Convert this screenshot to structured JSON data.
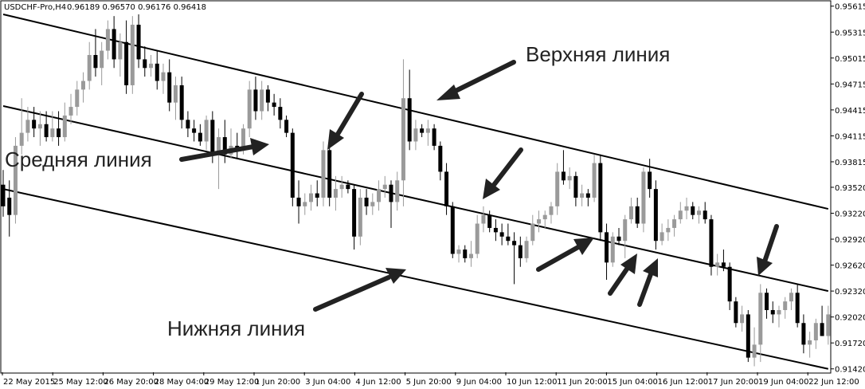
{
  "header": {
    "symbol": "USDCHF-Pro,H4",
    "ohlc": "0.96189 0.96570 0.96176 0.96418"
  },
  "annotations": {
    "upper": "Верхняя линия",
    "middle": "Средняя линия",
    "lower": "Нижняя линия"
  },
  "colors": {
    "bull": "#9a9a9a",
    "bear": "#000000",
    "channel": "#000000",
    "arrow": "#222222"
  },
  "chart_data": {
    "type": "candlestick",
    "y_ticks": [
      "0.95615",
      "0.95315",
      "0.95015",
      "0.94715",
      "0.94415",
      "0.94115",
      "0.93815",
      "0.93520",
      "0.93220",
      "0.92920",
      "0.92620",
      "0.92320",
      "0.92020",
      "0.91720",
      "0.91420"
    ],
    "x_ticks": [
      "22 May 2015",
      "25 May 12:00",
      "26 May 20:00",
      "28 May 04:00",
      "29 May 12:00",
      "1 Jun 20:00",
      "3 Jun 04:00",
      "4 Jun 12:00",
      "5 Jun 20:00",
      "9 Jun 04:00",
      "10 Jun 12:00",
      "11 Jun 20:00",
      "15 Jun 04:00",
      "16 Jun 12:00",
      "17 Jun 20:00",
      "19 Jun 04:00",
      "22 Jun 12:00"
    ],
    "ylim": [
      0.9139,
      0.9564
    ],
    "grid": false,
    "channel": {
      "upper": [
        [
          0,
          0.9552
        ],
        [
          134,
          0.9327
        ]
      ],
      "middle": [
        [
          0,
          0.9446
        ],
        [
          134,
          0.9232
        ]
      ],
      "lower": [
        [
          0,
          0.935
        ],
        [
          134,
          0.9142
        ]
      ]
    },
    "candles": [
      {
        "o": 0.9355,
        "h": 0.9372,
        "l": 0.9318,
        "c": 0.933
      },
      {
        "o": 0.934,
        "h": 0.936,
        "l": 0.9295,
        "c": 0.932
      },
      {
        "o": 0.932,
        "h": 0.941,
        "l": 0.931,
        "c": 0.94
      },
      {
        "o": 0.94,
        "h": 0.9455,
        "l": 0.939,
        "c": 0.9415
      },
      {
        "o": 0.9415,
        "h": 0.9445,
        "l": 0.9405,
        "c": 0.943
      },
      {
        "o": 0.943,
        "h": 0.9445,
        "l": 0.941,
        "c": 0.942
      },
      {
        "o": 0.942,
        "h": 0.944,
        "l": 0.94,
        "c": 0.9425
      },
      {
        "o": 0.9425,
        "h": 0.944,
        "l": 0.9405,
        "c": 0.941
      },
      {
        "o": 0.941,
        "h": 0.944,
        "l": 0.9405,
        "c": 0.942
      },
      {
        "o": 0.942,
        "h": 0.944,
        "l": 0.94,
        "c": 0.941
      },
      {
        "o": 0.941,
        "h": 0.945,
        "l": 0.9405,
        "c": 0.9435
      },
      {
        "o": 0.9435,
        "h": 0.946,
        "l": 0.9425,
        "c": 0.9445
      },
      {
        "o": 0.9445,
        "h": 0.9475,
        "l": 0.9435,
        "c": 0.9465
      },
      {
        "o": 0.9465,
        "h": 0.9485,
        "l": 0.945,
        "c": 0.9475
      },
      {
        "o": 0.9475,
        "h": 0.952,
        "l": 0.9465,
        "c": 0.9505
      },
      {
        "o": 0.9505,
        "h": 0.9535,
        "l": 0.948,
        "c": 0.949
      },
      {
        "o": 0.949,
        "h": 0.952,
        "l": 0.947,
        "c": 0.951
      },
      {
        "o": 0.951,
        "h": 0.9545,
        "l": 0.95,
        "c": 0.9535
      },
      {
        "o": 0.9535,
        "h": 0.955,
        "l": 0.949,
        "c": 0.95
      },
      {
        "o": 0.95,
        "h": 0.953,
        "l": 0.948,
        "c": 0.952
      },
      {
        "o": 0.952,
        "h": 0.9545,
        "l": 0.946,
        "c": 0.947
      },
      {
        "o": 0.947,
        "h": 0.955,
        "l": 0.946,
        "c": 0.954
      },
      {
        "o": 0.954,
        "h": 0.9552,
        "l": 0.949,
        "c": 0.95
      },
      {
        "o": 0.95,
        "h": 0.9515,
        "l": 0.948,
        "c": 0.949
      },
      {
        "o": 0.949,
        "h": 0.9505,
        "l": 0.948,
        "c": 0.9495
      },
      {
        "o": 0.9495,
        "h": 0.951,
        "l": 0.9465,
        "c": 0.9475
      },
      {
        "o": 0.9475,
        "h": 0.9495,
        "l": 0.946,
        "c": 0.9485
      },
      {
        "o": 0.9485,
        "h": 0.95,
        "l": 0.944,
        "c": 0.945
      },
      {
        "o": 0.945,
        "h": 0.948,
        "l": 0.943,
        "c": 0.947
      },
      {
        "o": 0.947,
        "h": 0.948,
        "l": 0.942,
        "c": 0.943
      },
      {
        "o": 0.943,
        "h": 0.944,
        "l": 0.941,
        "c": 0.942
      },
      {
        "o": 0.942,
        "h": 0.943,
        "l": 0.9405,
        "c": 0.9415
      },
      {
        "o": 0.9415,
        "h": 0.9425,
        "l": 0.94,
        "c": 0.9405
      },
      {
        "o": 0.9405,
        "h": 0.9435,
        "l": 0.9395,
        "c": 0.943
      },
      {
        "o": 0.943,
        "h": 0.944,
        "l": 0.938,
        "c": 0.939
      },
      {
        "o": 0.939,
        "h": 0.942,
        "l": 0.935,
        "c": 0.941
      },
      {
        "o": 0.941,
        "h": 0.943,
        "l": 0.938,
        "c": 0.939
      },
      {
        "o": 0.939,
        "h": 0.942,
        "l": 0.9385,
        "c": 0.94
      },
      {
        "o": 0.94,
        "h": 0.9415,
        "l": 0.9385,
        "c": 0.9395
      },
      {
        "o": 0.9395,
        "h": 0.9425,
        "l": 0.939,
        "c": 0.942
      },
      {
        "o": 0.942,
        "h": 0.9475,
        "l": 0.941,
        "c": 0.9465
      },
      {
        "o": 0.9465,
        "h": 0.948,
        "l": 0.943,
        "c": 0.944
      },
      {
        "o": 0.944,
        "h": 0.9475,
        "l": 0.943,
        "c": 0.9465
      },
      {
        "o": 0.9465,
        "h": 0.947,
        "l": 0.944,
        "c": 0.945
      },
      {
        "o": 0.945,
        "h": 0.946,
        "l": 0.9435,
        "c": 0.9445
      },
      {
        "o": 0.9445,
        "h": 0.9455,
        "l": 0.942,
        "c": 0.943
      },
      {
        "o": 0.943,
        "h": 0.9435,
        "l": 0.941,
        "c": 0.9415
      },
      {
        "o": 0.9415,
        "h": 0.942,
        "l": 0.933,
        "c": 0.934
      },
      {
        "o": 0.934,
        "h": 0.936,
        "l": 0.931,
        "c": 0.933
      },
      {
        "o": 0.933,
        "h": 0.9345,
        "l": 0.932,
        "c": 0.9335
      },
      {
        "o": 0.9335,
        "h": 0.9355,
        "l": 0.9325,
        "c": 0.9345
      },
      {
        "o": 0.9345,
        "h": 0.936,
        "l": 0.933,
        "c": 0.934
      },
      {
        "o": 0.934,
        "h": 0.9405,
        "l": 0.933,
        "c": 0.9395
      },
      {
        "o": 0.9395,
        "h": 0.9405,
        "l": 0.933,
        "c": 0.934
      },
      {
        "o": 0.934,
        "h": 0.9365,
        "l": 0.9325,
        "c": 0.935
      },
      {
        "o": 0.935,
        "h": 0.9365,
        "l": 0.934,
        "c": 0.9355
      },
      {
        "o": 0.9355,
        "h": 0.936,
        "l": 0.9345,
        "c": 0.935
      },
      {
        "o": 0.935,
        "h": 0.9355,
        "l": 0.928,
        "c": 0.9295
      },
      {
        "o": 0.9295,
        "h": 0.935,
        "l": 0.9285,
        "c": 0.934
      },
      {
        "o": 0.934,
        "h": 0.935,
        "l": 0.932,
        "c": 0.933
      },
      {
        "o": 0.933,
        "h": 0.9345,
        "l": 0.932,
        "c": 0.9335
      },
      {
        "o": 0.9335,
        "h": 0.936,
        "l": 0.9325,
        "c": 0.935
      },
      {
        "o": 0.935,
        "h": 0.9365,
        "l": 0.934,
        "c": 0.9355
      },
      {
        "o": 0.9355,
        "h": 0.936,
        "l": 0.9305,
        "c": 0.9335
      },
      {
        "o": 0.9335,
        "h": 0.937,
        "l": 0.9325,
        "c": 0.936
      },
      {
        "o": 0.936,
        "h": 0.95,
        "l": 0.933,
        "c": 0.9455
      },
      {
        "o": 0.9455,
        "h": 0.9488,
        "l": 0.9395,
        "c": 0.9405
      },
      {
        "o": 0.9405,
        "h": 0.943,
        "l": 0.9395,
        "c": 0.942
      },
      {
        "o": 0.942,
        "h": 0.9425,
        "l": 0.941,
        "c": 0.9415
      },
      {
        "o": 0.9415,
        "h": 0.943,
        "l": 0.94,
        "c": 0.942
      },
      {
        "o": 0.942,
        "h": 0.9425,
        "l": 0.9395,
        "c": 0.94
      },
      {
        "o": 0.94,
        "h": 0.9405,
        "l": 0.936,
        "c": 0.937
      },
      {
        "o": 0.937,
        "h": 0.938,
        "l": 0.932,
        "c": 0.933
      },
      {
        "o": 0.933,
        "h": 0.9335,
        "l": 0.927,
        "c": 0.9275
      },
      {
        "o": 0.9275,
        "h": 0.9285,
        "l": 0.9265,
        "c": 0.928
      },
      {
        "o": 0.928,
        "h": 0.9285,
        "l": 0.9265,
        "c": 0.927
      },
      {
        "o": 0.927,
        "h": 0.929,
        "l": 0.926,
        "c": 0.9275
      },
      {
        "o": 0.9275,
        "h": 0.932,
        "l": 0.927,
        "c": 0.931
      },
      {
        "o": 0.931,
        "h": 0.933,
        "l": 0.93,
        "c": 0.932
      },
      {
        "o": 0.932,
        "h": 0.9325,
        "l": 0.93,
        "c": 0.9305
      },
      {
        "o": 0.9305,
        "h": 0.9315,
        "l": 0.929,
        "c": 0.93
      },
      {
        "o": 0.93,
        "h": 0.931,
        "l": 0.9285,
        "c": 0.9295
      },
      {
        "o": 0.9295,
        "h": 0.931,
        "l": 0.9285,
        "c": 0.929
      },
      {
        "o": 0.929,
        "h": 0.93,
        "l": 0.924,
        "c": 0.9285
      },
      {
        "o": 0.9285,
        "h": 0.9295,
        "l": 0.926,
        "c": 0.927
      },
      {
        "o": 0.927,
        "h": 0.9295,
        "l": 0.9265,
        "c": 0.929
      },
      {
        "o": 0.929,
        "h": 0.932,
        "l": 0.9285,
        "c": 0.931
      },
      {
        "o": 0.931,
        "h": 0.9325,
        "l": 0.93,
        "c": 0.9315
      },
      {
        "o": 0.9315,
        "h": 0.9325,
        "l": 0.9305,
        "c": 0.932
      },
      {
        "o": 0.932,
        "h": 0.9335,
        "l": 0.931,
        "c": 0.933
      },
      {
        "o": 0.933,
        "h": 0.938,
        "l": 0.932,
        "c": 0.937
      },
      {
        "o": 0.937,
        "h": 0.9395,
        "l": 0.9355,
        "c": 0.936
      },
      {
        "o": 0.936,
        "h": 0.9375,
        "l": 0.935,
        "c": 0.9365
      },
      {
        "o": 0.9365,
        "h": 0.937,
        "l": 0.933,
        "c": 0.934
      },
      {
        "o": 0.934,
        "h": 0.9355,
        "l": 0.933,
        "c": 0.9345
      },
      {
        "o": 0.9345,
        "h": 0.935,
        "l": 0.933,
        "c": 0.934
      },
      {
        "o": 0.934,
        "h": 0.939,
        "l": 0.9335,
        "c": 0.938
      },
      {
        "o": 0.938,
        "h": 0.939,
        "l": 0.929,
        "c": 0.93
      },
      {
        "o": 0.93,
        "h": 0.931,
        "l": 0.9245,
        "c": 0.9265
      },
      {
        "o": 0.9265,
        "h": 0.93,
        "l": 0.926,
        "c": 0.9295
      },
      {
        "o": 0.9295,
        "h": 0.9305,
        "l": 0.9285,
        "c": 0.929
      },
      {
        "o": 0.929,
        "h": 0.932,
        "l": 0.927,
        "c": 0.9315
      },
      {
        "o": 0.9315,
        "h": 0.934,
        "l": 0.931,
        "c": 0.933
      },
      {
        "o": 0.933,
        "h": 0.934,
        "l": 0.9305,
        "c": 0.931
      },
      {
        "o": 0.931,
        "h": 0.9375,
        "l": 0.93,
        "c": 0.937
      },
      {
        "o": 0.937,
        "h": 0.9385,
        "l": 0.934,
        "c": 0.935
      },
      {
        "o": 0.935,
        "h": 0.936,
        "l": 0.928,
        "c": 0.929
      },
      {
        "o": 0.929,
        "h": 0.931,
        "l": 0.9285,
        "c": 0.93
      },
      {
        "o": 0.93,
        "h": 0.9315,
        "l": 0.929,
        "c": 0.9305
      },
      {
        "o": 0.9305,
        "h": 0.932,
        "l": 0.9295,
        "c": 0.9315
      },
      {
        "o": 0.9315,
        "h": 0.9335,
        "l": 0.931,
        "c": 0.9325
      },
      {
        "o": 0.9325,
        "h": 0.934,
        "l": 0.9315,
        "c": 0.933
      },
      {
        "o": 0.933,
        "h": 0.9335,
        "l": 0.9315,
        "c": 0.932
      },
      {
        "o": 0.932,
        "h": 0.933,
        "l": 0.931,
        "c": 0.9325
      },
      {
        "o": 0.9325,
        "h": 0.9335,
        "l": 0.931,
        "c": 0.9315
      },
      {
        "o": 0.9315,
        "h": 0.932,
        "l": 0.925,
        "c": 0.926
      },
      {
        "o": 0.926,
        "h": 0.9275,
        "l": 0.925,
        "c": 0.9265
      },
      {
        "o": 0.9265,
        "h": 0.928,
        "l": 0.9255,
        "c": 0.926
      },
      {
        "o": 0.926,
        "h": 0.9265,
        "l": 0.921,
        "c": 0.922
      },
      {
        "o": 0.922,
        "h": 0.9225,
        "l": 0.919,
        "c": 0.9195
      },
      {
        "o": 0.9195,
        "h": 0.9215,
        "l": 0.9185,
        "c": 0.9205
      },
      {
        "o": 0.9205,
        "h": 0.921,
        "l": 0.915,
        "c": 0.9155
      },
      {
        "o": 0.9155,
        "h": 0.919,
        "l": 0.9145,
        "c": 0.917
      },
      {
        "o": 0.917,
        "h": 0.924,
        "l": 0.915,
        "c": 0.923
      },
      {
        "o": 0.923,
        "h": 0.9235,
        "l": 0.92,
        "c": 0.921
      },
      {
        "o": 0.921,
        "h": 0.922,
        "l": 0.9195,
        "c": 0.9205
      },
      {
        "o": 0.9205,
        "h": 0.9215,
        "l": 0.919,
        "c": 0.921
      },
      {
        "o": 0.921,
        "h": 0.9225,
        "l": 0.92,
        "c": 0.922
      },
      {
        "o": 0.922,
        "h": 0.9235,
        "l": 0.921,
        "c": 0.923
      },
      {
        "o": 0.923,
        "h": 0.924,
        "l": 0.919,
        "c": 0.9195
      },
      {
        "o": 0.9195,
        "h": 0.9205,
        "l": 0.916,
        "c": 0.917
      },
      {
        "o": 0.917,
        "h": 0.9185,
        "l": 0.9155,
        "c": 0.9175
      },
      {
        "o": 0.9175,
        "h": 0.92,
        "l": 0.9165,
        "c": 0.9195
      },
      {
        "o": 0.9195,
        "h": 0.9215,
        "l": 0.918,
        "c": 0.918
      },
      {
        "o": 0.918,
        "h": 0.9215,
        "l": 0.917,
        "c": 0.9205
      }
    ]
  }
}
